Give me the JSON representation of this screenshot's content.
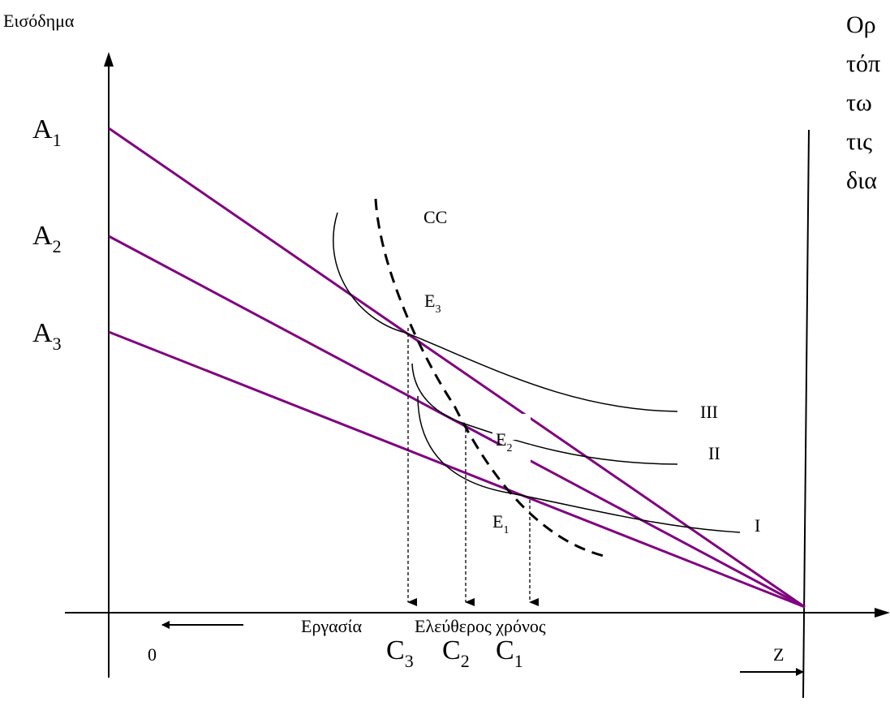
{
  "diagram": {
    "y_axis_label": "Εισόδημα",
    "origin_label": "0",
    "z_label": "Z",
    "work_label": "Εργασία",
    "leisure_label": "Ελεύθερος χρόνος",
    "intercepts": [
      {
        "base": "A",
        "sub": "1"
      },
      {
        "base": "A",
        "sub": "2"
      },
      {
        "base": "A",
        "sub": "3"
      }
    ],
    "curves": [
      "III",
      "II",
      "I"
    ],
    "cc_label": "CC",
    "equilibria": [
      {
        "base": "E",
        "sub": "3"
      },
      {
        "base": "E",
        "sub": "2"
      },
      {
        "base": "E",
        "sub": "1"
      }
    ],
    "leisure_points": [
      {
        "base": "C",
        "sub": "3"
      },
      {
        "base": "C",
        "sub": "2"
      },
      {
        "base": "C",
        "sub": "1"
      }
    ],
    "side_text": [
      "Ορ",
      "τόπ",
      "τω",
      "τις",
      "δια"
    ]
  },
  "colors": {
    "budget_line": "#800080",
    "axis": "#000000"
  }
}
